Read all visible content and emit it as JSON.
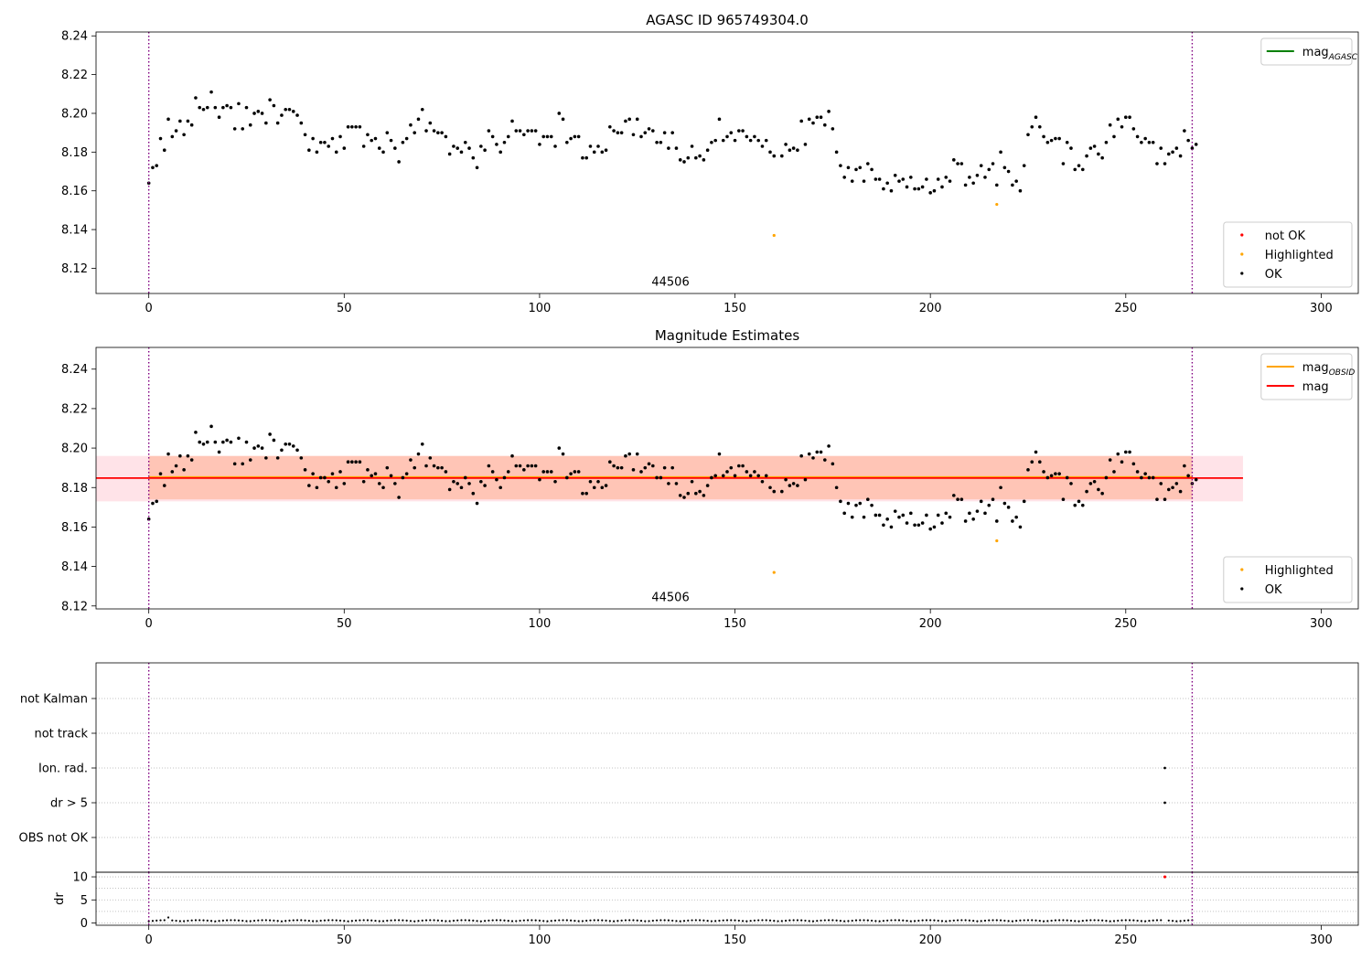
{
  "figure": {
    "background": "#ffffff"
  },
  "colors": {
    "ok": "#000000",
    "highlighted": "#ffa500",
    "not_ok": "#ff0000",
    "mag_agasc": "#008000",
    "mag_obsid": "#ffa500",
    "mag": "#ff0000",
    "band_obsid": "#ffa07a",
    "band_mag": "#ffc0cb",
    "vline": "#800080"
  },
  "chart_data": [
    {
      "type": "scatter",
      "title": "AGASC ID 965749304.0",
      "xlabel": "",
      "ylabel": "",
      "xlim": [
        -13.5,
        309.5
      ],
      "ylim": [
        8.107,
        8.242
      ],
      "xticks": [
        0,
        50,
        100,
        150,
        200,
        250,
        300
      ],
      "yticks": [
        8.12,
        8.14,
        8.16,
        8.18,
        8.2,
        8.22,
        8.24
      ],
      "ytick_labels": [
        "8.12",
        "8.14",
        "8.16",
        "8.18",
        "8.20",
        "8.22",
        "8.24"
      ],
      "grid": false,
      "obsid_vlines": [
        0,
        267
      ],
      "annotation": {
        "text": "44506",
        "x": 133.5,
        "y": 8.111
      },
      "series": [
        {
          "name": "OK",
          "color": "#000000",
          "x_start": 0,
          "y": [
            8.164,
            8.172,
            8.173,
            8.187,
            8.181,
            8.197,
            8.188,
            8.191,
            8.196,
            8.189,
            8.196,
            8.194,
            8.208,
            8.203,
            8.202,
            8.203,
            8.211,
            8.203,
            8.198,
            8.203,
            8.204,
            8.203,
            8.192,
            8.205,
            8.192,
            8.203,
            8.194,
            8.2,
            8.201,
            8.2,
            8.195,
            8.207,
            8.204,
            8.195,
            8.199,
            8.202,
            8.202,
            8.201,
            8.199,
            8.195,
            8.189,
            8.181,
            8.187,
            8.18,
            8.185,
            8.185,
            8.183,
            8.187,
            8.18,
            8.188,
            8.182,
            8.193,
            8.193,
            8.193,
            8.193,
            8.183,
            8.189,
            8.186,
            8.187,
            8.182,
            8.18,
            8.19,
            8.186,
            8.182,
            8.175,
            8.185,
            8.187,
            8.194,
            8.19,
            8.197,
            8.202,
            8.191,
            8.195,
            8.191,
            8.19,
            8.19,
            8.188,
            8.179,
            8.183,
            8.182,
            8.18,
            8.185,
            8.182,
            8.177,
            8.172,
            8.183,
            8.181,
            8.191,
            8.188,
            8.184,
            8.18,
            8.185,
            8.188,
            8.196,
            8.191,
            8.191,
            8.189,
            8.191,
            8.191,
            8.191,
            8.184,
            8.188,
            8.188,
            8.188,
            8.183,
            8.2,
            8.197,
            8.185,
            8.187,
            8.188,
            8.188,
            8.177,
            8.177,
            8.183,
            8.18,
            8.183,
            8.18,
            8.181,
            8.193,
            8.191,
            8.19,
            8.19,
            8.196,
            8.197,
            8.189,
            8.197,
            8.188,
            8.19,
            8.192,
            8.191,
            8.185,
            8.185,
            8.19,
            8.182,
            8.19,
            8.182,
            8.176,
            8.175,
            8.177,
            8.183,
            8.177,
            8.178,
            8.176,
            8.181,
            8.185,
            8.186,
            8.197,
            8.186,
            8.188,
            8.19,
            8.186,
            8.191,
            8.191,
            8.188,
            8.186,
            8.188,
            8.186,
            8.183,
            8.186,
            8.18,
            8.178,
            null,
            8.178,
            8.184,
            8.181,
            8.182,
            8.181,
            8.196,
            8.184,
            8.197,
            8.195,
            8.198,
            8.198,
            8.194,
            8.201,
            8.192,
            8.18,
            8.173,
            8.167,
            8.172,
            8.165,
            8.171,
            8.172,
            8.165,
            8.174,
            8.171,
            8.166,
            8.166,
            8.161,
            8.164,
            8.16,
            8.168,
            8.165,
            8.166,
            8.162,
            8.167,
            8.161,
            8.161,
            8.162,
            8.166,
            8.159,
            8.16,
            8.166,
            8.162,
            8.167,
            8.165,
            8.176,
            8.174,
            8.174,
            8.163,
            8.167,
            8.164,
            8.168,
            8.173,
            8.167,
            8.171,
            8.174,
            8.163,
            8.18,
            8.172,
            8.17,
            8.163,
            8.165,
            8.16,
            8.173,
            8.189,
            8.193,
            8.198,
            8.193,
            8.188,
            8.185,
            8.186,
            8.187,
            8.187,
            8.174,
            8.185,
            8.182,
            8.171,
            8.173,
            8.171,
            8.178,
            8.182,
            8.183,
            8.179,
            8.177,
            8.185,
            8.194,
            8.188,
            8.197,
            8.193,
            8.198,
            8.198,
            8.192,
            8.188,
            8.185,
            8.187,
            8.185,
            8.185,
            8.174,
            8.182,
            8.174,
            8.179,
            8.18,
            8.182,
            8.178,
            8.191,
            8.186,
            8.182,
            8.184
          ]
        },
        {
          "name": "Highlighted",
          "color": "#ffa500",
          "points": [
            [
              160,
              8.137
            ],
            [
              217,
              8.153
            ]
          ]
        },
        {
          "name": "not OK",
          "color": "#ff0000",
          "points": []
        },
        {
          "name": "mag",
          "label_sub": "AGASC",
          "color": "#008000",
          "points": []
        }
      ],
      "legends": [
        {
          "placement": "upper-right",
          "entries": [
            {
              "kind": "line",
              "color": "#008000",
              "label": "mag",
              "sub": "AGASC"
            }
          ]
        },
        {
          "placement": "lower-right",
          "entries": [
            {
              "kind": "dot",
              "color": "#ff0000",
              "label": "not OK"
            },
            {
              "kind": "dot",
              "color": "#ffa500",
              "label": "Highlighted"
            },
            {
              "kind": "dot",
              "color": "#000000",
              "label": "OK"
            }
          ]
        }
      ]
    },
    {
      "type": "scatter",
      "title": "Magnitude Estimates",
      "xlabel": "",
      "ylabel": "",
      "xlim": [
        -13.5,
        309.5
      ],
      "ylim": [
        8.1185,
        8.251
      ],
      "xticks": [
        0,
        50,
        100,
        150,
        200,
        250,
        300
      ],
      "yticks": [
        8.12,
        8.14,
        8.16,
        8.18,
        8.2,
        8.22,
        8.24
      ],
      "ytick_labels": [
        "8.12",
        "8.14",
        "8.16",
        "8.18",
        "8.20",
        "8.22",
        "8.24"
      ],
      "grid": false,
      "obsid_vlines": [
        0,
        267
      ],
      "annotation": {
        "text": "44506",
        "x": 133.5,
        "y": 8.1225
      },
      "mag_obsid": {
        "value": 8.1848,
        "band": [
          8.174,
          8.196
        ],
        "x_range": [
          0,
          267
        ]
      },
      "mag": {
        "value": 8.1848,
        "band": [
          8.173,
          8.196
        ],
        "x_range": [
          -13.5,
          280
        ]
      },
      "series_ref": "same_as_top_panel",
      "legends": [
        {
          "placement": "upper-right",
          "entries": [
            {
              "kind": "line",
              "color": "#ffa500",
              "label": "mag",
              "sub": "OBSID"
            },
            {
              "kind": "line",
              "color": "#ff0000",
              "label": "mag",
              "sub": ""
            }
          ]
        },
        {
          "placement": "lower-right",
          "entries": [
            {
              "kind": "dot",
              "color": "#ffa500",
              "label": "Highlighted"
            },
            {
              "kind": "dot",
              "color": "#000000",
              "label": "OK"
            }
          ]
        }
      ]
    },
    {
      "type": "scatter",
      "title": "",
      "xlabel": "",
      "ylabel": "",
      "xlim": [
        -13.5,
        309.5
      ],
      "categories": [
        "not Kalman",
        "not track",
        "Ion. rad.",
        "dr > 5",
        "OBS not OK"
      ],
      "grid": true,
      "obsid_vlines": [
        0,
        267
      ],
      "flags": [
        {
          "category": "Ion. rad.",
          "x": 260
        },
        {
          "category": "dr > 5",
          "x": 260
        }
      ]
    },
    {
      "type": "scatter",
      "title": "",
      "xlabel": "",
      "ylabel": "dr",
      "xlim": [
        -13.5,
        309.5
      ],
      "ylim": [
        -0.5,
        11
      ],
      "xticks": [
        0,
        50,
        100,
        150,
        200,
        250,
        300
      ],
      "yticks": [
        0,
        5,
        10
      ],
      "grid": true,
      "obsid_vlines": [
        0,
        267
      ],
      "series": [
        {
          "name": "OK",
          "color": "#000000",
          "note": "dr values for each of the 268 samples",
          "x_start": 0,
          "count": 268
        },
        {
          "name": "not OK",
          "color": "#ff0000",
          "points": [
            [
              260,
              10.0
            ]
          ]
        }
      ]
    }
  ]
}
